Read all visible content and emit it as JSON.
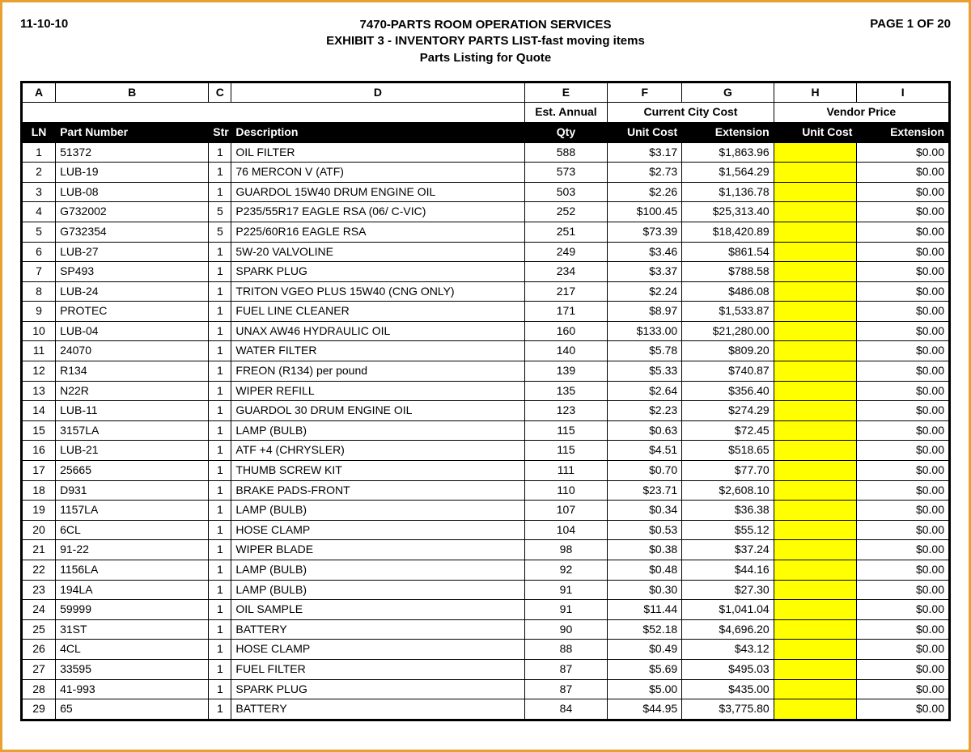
{
  "meta": {
    "date": "11-10-10",
    "title1": "7470-PARTS ROOM OPERATION SERVICES",
    "title2": "EXHIBIT 3 - INVENTORY PARTS LIST-fast moving items",
    "title3": "Parts Listing for Quote",
    "page": "PAGE 1 OF 20"
  },
  "column_letters": [
    "A",
    "B",
    "C",
    "D",
    "E",
    "F",
    "G",
    "H",
    "I"
  ],
  "group_headers": {
    "blank_span": 4,
    "est_annual": "Est. Annual",
    "current_city": "Current City Cost",
    "vendor_price": "Vendor Price"
  },
  "headers": {
    "ln": "LN",
    "part": "Part Number",
    "str": "Str",
    "desc": "Description",
    "qty": "Qty",
    "unit_cost": "Unit Cost",
    "extension": "Extension",
    "v_unit_cost": "Unit Cost",
    "v_extension": "Extension"
  },
  "style": {
    "highlight_color": "#ffff00",
    "header_bg": "#000000",
    "header_fg": "#ffffff",
    "border_color": "#000000",
    "page_border": "#e8a030",
    "fontsize_body": 14,
    "fontsize_header": 15
  },
  "rows": [
    {
      "ln": "1",
      "part": "51372",
      "str": "1",
      "desc": "OIL FILTER",
      "qty": "588",
      "uc": "$3.17",
      "ext": "$1,863.96",
      "vuc": "",
      "vext": "$0.00"
    },
    {
      "ln": "2",
      "part": "LUB-19",
      "str": "1",
      "desc": "76 MERCON V (ATF)",
      "qty": "573",
      "uc": "$2.73",
      "ext": "$1,564.29",
      "vuc": "",
      "vext": "$0.00"
    },
    {
      "ln": "3",
      "part": "LUB-08",
      "str": "1",
      "desc": "GUARDOL 15W40 DRUM ENGINE OIL",
      "qty": "503",
      "uc": "$2.26",
      "ext": "$1,136.78",
      "vuc": "",
      "vext": "$0.00"
    },
    {
      "ln": "4",
      "part": "G732002",
      "str": "5",
      "desc": "P235/55R17 EAGLE RSA (06/ C-VIC)",
      "qty": "252",
      "uc": "$100.45",
      "ext": "$25,313.40",
      "vuc": "",
      "vext": "$0.00"
    },
    {
      "ln": "5",
      "part": "G732354",
      "str": "5",
      "desc": "P225/60R16 EAGLE RSA",
      "qty": "251",
      "uc": "$73.39",
      "ext": "$18,420.89",
      "vuc": "",
      "vext": "$0.00"
    },
    {
      "ln": "6",
      "part": "LUB-27",
      "str": "1",
      "desc": "5W-20 VALVOLINE",
      "qty": "249",
      "uc": "$3.46",
      "ext": "$861.54",
      "vuc": "",
      "vext": "$0.00"
    },
    {
      "ln": "7",
      "part": "SP493",
      "str": "1",
      "desc": "SPARK PLUG",
      "qty": "234",
      "uc": "$3.37",
      "ext": "$788.58",
      "vuc": "",
      "vext": "$0.00"
    },
    {
      "ln": "8",
      "part": "LUB-24",
      "str": "1",
      "desc": "TRITON VGEO PLUS 15W40 (CNG ONLY)",
      "qty": "217",
      "uc": "$2.24",
      "ext": "$486.08",
      "vuc": "",
      "vext": "$0.00"
    },
    {
      "ln": "9",
      "part": "PROTEC",
      "str": "1",
      "desc": "FUEL LINE CLEANER",
      "qty": "171",
      "uc": "$8.97",
      "ext": "$1,533.87",
      "vuc": "",
      "vext": "$0.00"
    },
    {
      "ln": "10",
      "part": "LUB-04",
      "str": "1",
      "desc": "UNAX AW46 HYDRAULIC OIL",
      "qty": "160",
      "uc": "$133.00",
      "ext": "$21,280.00",
      "vuc": "",
      "vext": "$0.00"
    },
    {
      "ln": "11",
      "part": "24070",
      "str": "1",
      "desc": "WATER FILTER",
      "qty": "140",
      "uc": "$5.78",
      "ext": "$809.20",
      "vuc": "",
      "vext": "$0.00"
    },
    {
      "ln": "12",
      "part": "R134",
      "str": "1",
      "desc": "FREON (R134) per pound",
      "qty": "139",
      "uc": "$5.33",
      "ext": "$740.87",
      "vuc": "",
      "vext": "$0.00"
    },
    {
      "ln": "13",
      "part": "N22R",
      "str": "1",
      "desc": "WIPER REFILL",
      "qty": "135",
      "uc": "$2.64",
      "ext": "$356.40",
      "vuc": "",
      "vext": "$0.00"
    },
    {
      "ln": "14",
      "part": "LUB-11",
      "str": "1",
      "desc": "GUARDOL 30 DRUM ENGINE OIL",
      "qty": "123",
      "uc": "$2.23",
      "ext": "$274.29",
      "vuc": "",
      "vext": "$0.00"
    },
    {
      "ln": "15",
      "part": "3157LA",
      "str": "1",
      "desc": "LAMP (BULB)",
      "qty": "115",
      "uc": "$0.63",
      "ext": "$72.45",
      "vuc": "",
      "vext": "$0.00"
    },
    {
      "ln": "16",
      "part": "LUB-21",
      "str": "1",
      "desc": "ATF +4 (CHRYSLER)",
      "qty": "115",
      "uc": "$4.51",
      "ext": "$518.65",
      "vuc": "",
      "vext": "$0.00"
    },
    {
      "ln": "17",
      "part": "25665",
      "str": "1",
      "desc": "THUMB SCREW KIT",
      "qty": "111",
      "uc": "$0.70",
      "ext": "$77.70",
      "vuc": "",
      "vext": "$0.00"
    },
    {
      "ln": "18",
      "part": "D931",
      "str": "1",
      "desc": "BRAKE PADS-FRONT",
      "qty": "110",
      "uc": "$23.71",
      "ext": "$2,608.10",
      "vuc": "",
      "vext": "$0.00"
    },
    {
      "ln": "19",
      "part": "1157LA",
      "str": "1",
      "desc": "LAMP (BULB)",
      "qty": "107",
      "uc": "$0.34",
      "ext": "$36.38",
      "vuc": "",
      "vext": "$0.00"
    },
    {
      "ln": "20",
      "part": "6CL",
      "str": "1",
      "desc": "HOSE CLAMP",
      "qty": "104",
      "uc": "$0.53",
      "ext": "$55.12",
      "vuc": "",
      "vext": "$0.00"
    },
    {
      "ln": "21",
      "part": "91-22",
      "str": "1",
      "desc": "WIPER BLADE",
      "qty": "98",
      "uc": "$0.38",
      "ext": "$37.24",
      "vuc": "",
      "vext": "$0.00"
    },
    {
      "ln": "22",
      "part": "1156LA",
      "str": "1",
      "desc": "LAMP (BULB)",
      "qty": "92",
      "uc": "$0.48",
      "ext": "$44.16",
      "vuc": "",
      "vext": "$0.00"
    },
    {
      "ln": "23",
      "part": "194LA",
      "str": "1",
      "desc": "LAMP (BULB)",
      "qty": "91",
      "uc": "$0.30",
      "ext": "$27.30",
      "vuc": "",
      "vext": "$0.00"
    },
    {
      "ln": "24",
      "part": "59999",
      "str": "1",
      "desc": "OIL SAMPLE",
      "qty": "91",
      "uc": "$11.44",
      "ext": "$1,041.04",
      "vuc": "",
      "vext": "$0.00"
    },
    {
      "ln": "25",
      "part": "31ST",
      "str": "1",
      "desc": "BATTERY",
      "qty": "90",
      "uc": "$52.18",
      "ext": "$4,696.20",
      "vuc": "",
      "vext": "$0.00"
    },
    {
      "ln": "26",
      "part": "4CL",
      "str": "1",
      "desc": "HOSE CLAMP",
      "qty": "88",
      "uc": "$0.49",
      "ext": "$43.12",
      "vuc": "",
      "vext": "$0.00"
    },
    {
      "ln": "27",
      "part": "33595",
      "str": "1",
      "desc": "FUEL FILTER",
      "qty": "87",
      "uc": "$5.69",
      "ext": "$495.03",
      "vuc": "",
      "vext": "$0.00"
    },
    {
      "ln": "28",
      "part": "41-993",
      "str": "1",
      "desc": "SPARK PLUG",
      "qty": "87",
      "uc": "$5.00",
      "ext": "$435.00",
      "vuc": "",
      "vext": "$0.00"
    },
    {
      "ln": "29",
      "part": "65",
      "str": "1",
      "desc": "BATTERY",
      "qty": "84",
      "uc": "$44.95",
      "ext": "$3,775.80",
      "vuc": "",
      "vext": "$0.00"
    }
  ]
}
